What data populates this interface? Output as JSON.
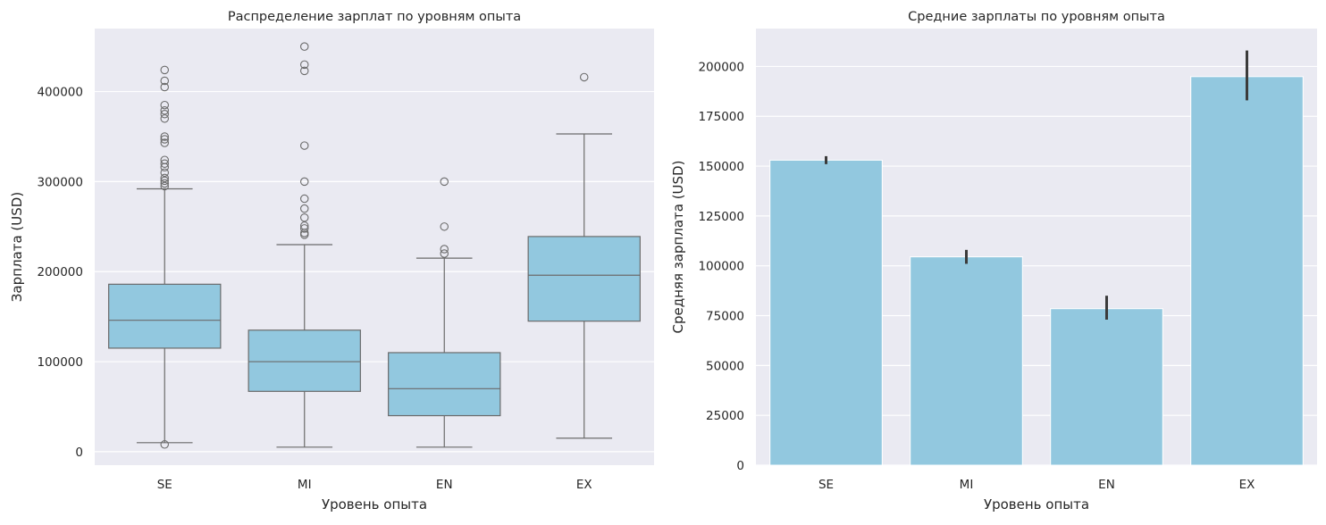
{
  "colors": {
    "panel_bg": "#eaeaf2",
    "grid": "#ffffff",
    "fill": "#92c8df",
    "line": "#6b6b6b",
    "errbar": "#3b3b3b"
  },
  "chart_data": [
    {
      "type": "box",
      "title": "Распределение зарплат по уровням опыта",
      "xlabel": "Уровень опыта",
      "ylabel": "Зарплата (USD)",
      "ylim": [
        -15000,
        470000
      ],
      "yticks": [
        0,
        100000,
        200000,
        300000,
        400000
      ],
      "ytick_labels": [
        "0",
        "100000",
        "200000",
        "300000",
        "400000"
      ],
      "grid": true,
      "categories": [
        "SE",
        "MI",
        "EN",
        "EX"
      ],
      "boxes": [
        {
          "category": "SE",
          "whislo": 10000,
          "q1": 115000,
          "median": 146000,
          "q3": 186000,
          "whishi": 292000,
          "fliers": [
            8000,
            295000,
            298000,
            301000,
            304000,
            310000,
            316000,
            320000,
            324000,
            343000,
            347000,
            350000,
            370000,
            375000,
            379000,
            385000,
            405000,
            412000,
            424000
          ]
        },
        {
          "category": "MI",
          "whislo": 5000,
          "q1": 67000,
          "median": 100000,
          "q3": 135000,
          "whishi": 230000,
          "fliers": [
            241000,
            243000,
            248000,
            251000,
            260000,
            270000,
            281000,
            300000,
            340000,
            423000,
            430000,
            450000
          ]
        },
        {
          "category": "EN",
          "whislo": 5000,
          "q1": 40000,
          "median": 70000,
          "q3": 110000,
          "whishi": 215000,
          "fliers": [
            220000,
            225000,
            250000,
            300000
          ]
        },
        {
          "category": "EX",
          "whislo": 15000,
          "q1": 145000,
          "median": 196000,
          "q3": 239000,
          "whishi": 353000,
          "fliers": [
            416000
          ]
        }
      ]
    },
    {
      "type": "bar",
      "title": "Средние зарплаты по уровням опыта",
      "xlabel": "Уровень опыта",
      "ylabel": "Средняя зарплата (USD)",
      "ylim": [
        0,
        219000
      ],
      "yticks": [
        0,
        25000,
        50000,
        75000,
        100000,
        125000,
        150000,
        175000,
        200000
      ],
      "ytick_labels": [
        "0",
        "25000",
        "50000",
        "75000",
        "100000",
        "125000",
        "150000",
        "175000",
        "200000"
      ],
      "grid": true,
      "categories": [
        "SE",
        "MI",
        "EN",
        "EX"
      ],
      "values": [
        153000,
        104500,
        78500,
        194900
      ],
      "ci_low": [
        151000,
        101000,
        73000,
        183000
      ],
      "ci_high": [
        155000,
        108000,
        85000,
        208000
      ]
    }
  ]
}
